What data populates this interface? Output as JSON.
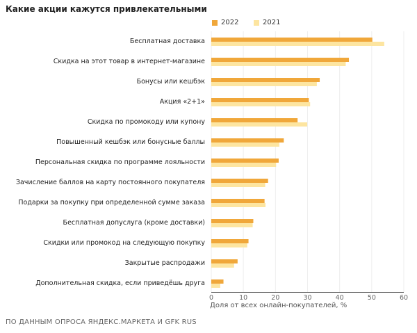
{
  "chart_data": {
    "type": "bar",
    "orientation": "horizontal",
    "title": "Какие акции кажутся привлекательными",
    "xlabel": "Доля от всех онлайн-покупателей, %",
    "xlim": [
      0,
      60
    ],
    "xticks": [
      0,
      10,
      20,
      30,
      40,
      50,
      60
    ],
    "grid": true,
    "legend": "top",
    "categories": [
      "Бесплатная доставка",
      "Скидка на этот товар в интернет-магазине",
      "Бонусы или кешбэк",
      "Акция «2+1»",
      "Скидка по промокоду или купону",
      "Повышенный кешбэк или бонусные баллы",
      "Персональная скидка по программе лояльности",
      "Зачисление баллов на карту постоянного покупателя",
      "Подарки за покупку при определенной сумме заказа",
      "Бесплатная допуслуга (кроме доставки)",
      "Скидки или промокод на следующую покупку",
      "Закрытые распродажи",
      "Дополнительная скидка, если приведёшь друга"
    ],
    "series": [
      {
        "name": "2022",
        "color": "#f0a73a",
        "values": [
          50.2,
          42.9,
          33.8,
          30.4,
          26.9,
          22.6,
          21.0,
          17.7,
          16.6,
          13.1,
          11.6,
          8.2,
          3.8
        ]
      },
      {
        "name": "2021",
        "color": "#fde5a0",
        "values": [
          53.9,
          41.9,
          32.9,
          30.8,
          29.9,
          21.2,
          20.2,
          16.8,
          16.9,
          12.9,
          11.2,
          7.1,
          2.8
        ]
      }
    ]
  },
  "footer": "ПО ДАННЫМ ОПРОСА ЯНДЕКС.МАРКЕТА И GFK RUS"
}
